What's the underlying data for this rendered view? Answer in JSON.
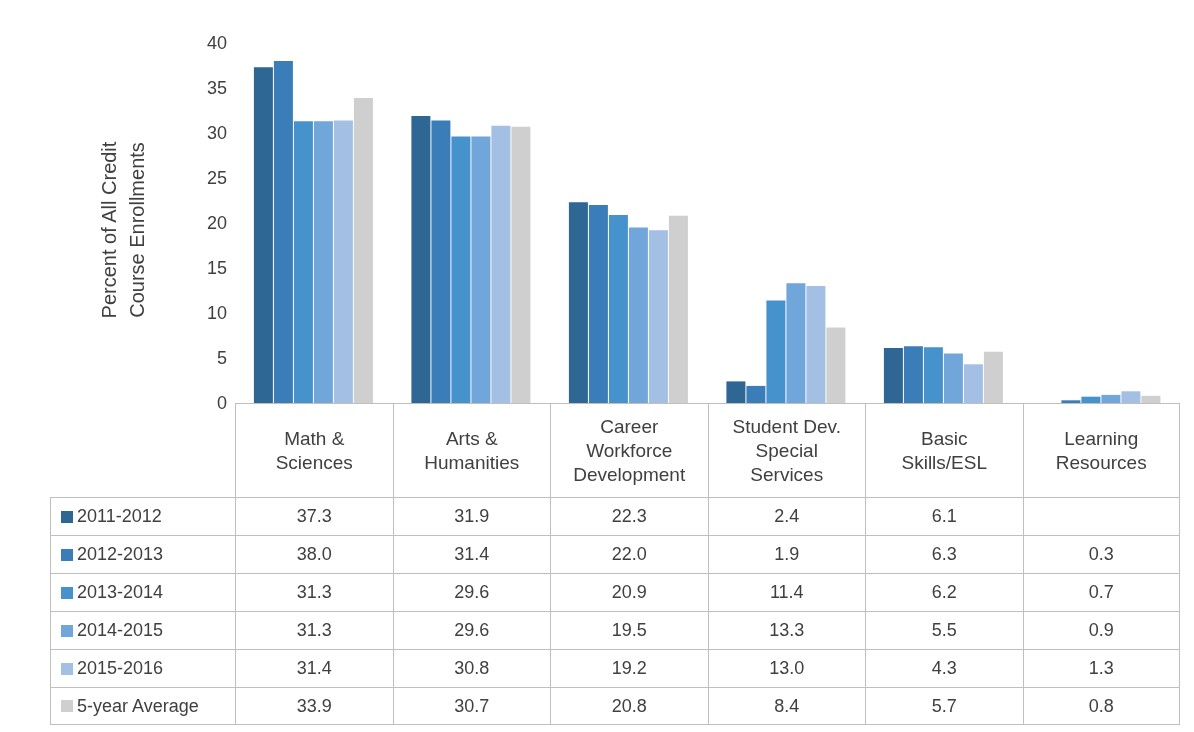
{
  "chart_data": {
    "type": "bar",
    "categories": [
      "Math & Sciences",
      "Arts & Humanities",
      "Career Workforce Development",
      "Student Dev. Special Services",
      "Basic Skills/ESL",
      "Learning Resources"
    ],
    "series": [
      {
        "name": "2011-2012",
        "color": "#2e6694",
        "values": [
          37.3,
          31.9,
          22.3,
          2.4,
          6.1,
          null
        ],
        "value_labels": [
          "37.3",
          "31.9",
          "22.3",
          "2.4",
          "6.1",
          null
        ]
      },
      {
        "name": "2012-2013",
        "color": "#3a7db8",
        "values": [
          38.0,
          31.4,
          22.0,
          1.9,
          6.3,
          0.3
        ],
        "value_labels": [
          "38.0",
          "31.4",
          "22.0",
          "1.9",
          "6.3",
          "0.3"
        ]
      },
      {
        "name": "2013-2014",
        "color": "#4592cd",
        "values": [
          31.3,
          29.6,
          20.9,
          11.4,
          6.2,
          0.7
        ],
        "value_labels": [
          "31.3",
          "29.6",
          "20.9",
          "11.4",
          "6.2",
          "0.7"
        ]
      },
      {
        "name": "2014-2015",
        "color": "#70a6da",
        "values": [
          31.3,
          29.6,
          19.5,
          13.3,
          5.5,
          0.9
        ],
        "value_labels": [
          "31.3",
          "29.6",
          "19.5",
          "13.3",
          "5.5",
          "0.9"
        ]
      },
      {
        "name": "2015-2016",
        "color": "#a3bfe4",
        "values": [
          31.4,
          30.8,
          19.2,
          13.0,
          4.3,
          1.3
        ],
        "value_labels": [
          "31.4",
          "30.8",
          "19.2",
          "13.0",
          "4.3",
          "1.3"
        ]
      },
      {
        "name": "5-year Average",
        "color": "#cfcfcf",
        "values": [
          33.9,
          30.7,
          20.8,
          8.4,
          5.7,
          0.8
        ],
        "value_labels": [
          "33.9",
          "30.7",
          "20.8",
          "8.4",
          "5.7",
          "0.8"
        ]
      }
    ],
    "ylabel": "Percent of All Credit Course Enrollments",
    "ylim": [
      0,
      40
    ],
    "yticks": [
      0,
      5,
      10,
      15,
      20,
      25,
      30,
      35,
      40
    ],
    "grid": false,
    "legend": "bottom"
  }
}
